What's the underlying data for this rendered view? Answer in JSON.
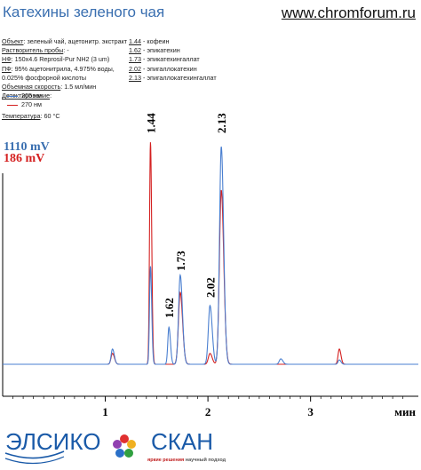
{
  "header": {
    "title": "Катехины зеленого чая",
    "site": "www.chromforum.ru"
  },
  "conditions": [
    {
      "key": "Объект",
      "value": ": зеленый чай, ацетонитр. экстракт"
    },
    {
      "key": "Растворитель пробы",
      "value": ": -"
    },
    {
      "key": "НФ",
      "value": ": 150x4.6 Reprosil-Pur NH2  (3 um)"
    },
    {
      "key": "ПФ",
      "value": ": 95% ацетонитрила, 4.975% воды,"
    },
    {
      "key": "",
      "value": "0.025% фосфорной кислоты"
    },
    {
      "key": "Объемная скорость",
      "value": ": 1.5 мл/мин"
    },
    {
      "key": "Детектирование",
      "value": ":"
    }
  ],
  "peak_list": [
    {
      "time": "1.44",
      "name": " - кофеин"
    },
    {
      "time": "1.62",
      "name": " - эпикатехин"
    },
    {
      "time": "1.73",
      "name": " - эпикатехингаллат"
    },
    {
      "time": "2.02",
      "name": " - эпигаллокатехин"
    },
    {
      "time": "2.13",
      "name": " - эпигаллокатехингаллат"
    }
  ],
  "legend": [
    {
      "label": "205 нм",
      "color": "#4a7fd0"
    },
    {
      "label": "270 нм",
      "color": "#d42020"
    }
  ],
  "temperature": {
    "key": "Температура",
    "value": ": 60 °C"
  },
  "scale_labels": {
    "blue": "1110 mV",
    "red": "186 mV"
  },
  "chart_data": {
    "type": "line",
    "xlabel": "мин",
    "xticks": [
      "1",
      "2",
      "3"
    ],
    "xlim": [
      0,
      4.05
    ],
    "peak_labels": [
      "1.44",
      "1.62",
      "1.73",
      "2.02",
      "2.13"
    ],
    "series": [
      {
        "name": "205 нм",
        "color": "#4a7fd0",
        "baseline": 0.02,
        "peaks": [
          {
            "t": 1.07,
            "h": 0.07,
            "w": 0.013
          },
          {
            "t": 1.44,
            "h": 0.45,
            "w": 0.009
          },
          {
            "t": 1.62,
            "h": 0.17,
            "w": 0.011
          },
          {
            "t": 1.73,
            "h": 0.41,
            "w": 0.016
          },
          {
            "t": 2.02,
            "h": 0.27,
            "w": 0.016
          },
          {
            "t": 2.13,
            "h": 1.0,
            "w": 0.017
          },
          {
            "t": 2.71,
            "h": 0.025,
            "w": 0.015
          },
          {
            "t": 3.28,
            "h": 0.02,
            "w": 0.012
          }
        ]
      },
      {
        "name": "270 нм",
        "color": "#d42020",
        "baseline": 0.02,
        "peaks": [
          {
            "t": 1.07,
            "h": 0.05,
            "w": 0.014
          },
          {
            "t": 1.44,
            "h": 1.02,
            "w": 0.009
          },
          {
            "t": 1.73,
            "h": 0.33,
            "w": 0.017
          },
          {
            "t": 2.02,
            "h": 0.05,
            "w": 0.016
          },
          {
            "t": 2.13,
            "h": 0.8,
            "w": 0.018
          },
          {
            "t": 3.28,
            "h": 0.07,
            "w": 0.012
          }
        ]
      }
    ]
  },
  "logo": {
    "left": "ЭЛСИКО",
    "right": "СКАН",
    "slogan_red": "яркие решения",
    "slogan_gray": "научный подход"
  }
}
